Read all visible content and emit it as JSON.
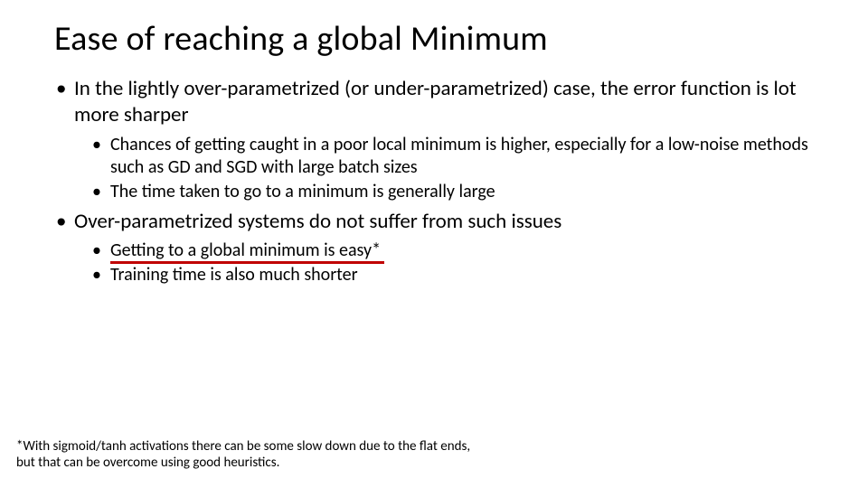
{
  "title": "Ease of reaching a global Minimum",
  "bullets": {
    "b1": "In the lightly over-parametrized (or under-parametrized) case, the error function is lot more sharper",
    "b1a": "Chances of getting caught in a poor local minimum is higher, especially for a low-noise methods such as GD and SGD with large batch sizes",
    "b1b": "The time taken to go to a minimum is generally large",
    "b2": "Over-parametrized systems do not suffer from such issues",
    "b2a": "Getting to a global minimum is easy*",
    "b2b": "Training time is also much shorter"
  },
  "footnote": "*With sigmoid/tanh activations there can be some slow down due to the flat ends, but that can be overcome using good heuristics.",
  "colors": {
    "underline": "#c00000",
    "text": "#000000",
    "background": "#ffffff"
  },
  "fonts": {
    "title_size_pt": 38,
    "lvl1_size_pt": 23,
    "lvl2_size_pt": 20,
    "footnote_size_pt": 15,
    "family": "Calibri"
  }
}
